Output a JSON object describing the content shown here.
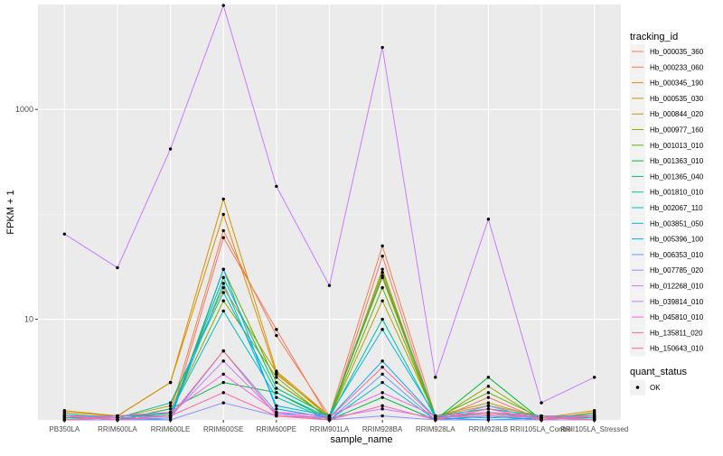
{
  "chart_data": {
    "type": "line",
    "title": "",
    "xlabel": "sample_name",
    "ylabel": "FPKM + 1",
    "y_scale": "log10",
    "ylim": [
      1.1,
      10000
    ],
    "y_ticks": [
      10,
      1000
    ],
    "y_tick_labels": [
      "10",
      "1000"
    ],
    "grid": true,
    "legend_position": "right",
    "categories": [
      "PB350LA",
      "RRIM600LA",
      "RRIM600LE",
      "RRIM600SE",
      "RRIM600PE",
      "RRIM901LA",
      "RRIM928BA",
      "RRIM928LA",
      "RRIM928LB",
      "RRII105LA_Control",
      "RRII105LA_Stressed"
    ],
    "legend_title": "tracking_id",
    "shape_legend_title": "quant_status",
    "shape_legend_entries": [
      "OK"
    ],
    "series": [
      {
        "name": "Hb_000035_360",
        "color": "#F8766D",
        "values": [
          1.1,
          1.1,
          1.15,
          60,
          8,
          1.1,
          40,
          1.1,
          1.8,
          1.1,
          1.1
        ]
      },
      {
        "name": "Hb_000233_060",
        "color": "#F0814A",
        "values": [
          1.2,
          1.2,
          1.3,
          70,
          7,
          1.2,
          50,
          1.2,
          1.5,
          1.2,
          1.2
        ]
      },
      {
        "name": "Hb_000345_190",
        "color": "#E38900",
        "values": [
          1.3,
          1.2,
          2.5,
          100,
          3,
          1.2,
          25,
          1.1,
          1.2,
          1.1,
          1.3
        ]
      },
      {
        "name": "Hb_000535_030",
        "color": "#D39200",
        "values": [
          1.35,
          1.2,
          2.5,
          140,
          3.2,
          1.2,
          28,
          1.15,
          1.25,
          1.15,
          1.35
        ]
      },
      {
        "name": "Hb_000844_020",
        "color": "#B79F00",
        "values": [
          1.2,
          1.15,
          1.5,
          20,
          3.1,
          1.15,
          15,
          1.2,
          1.6,
          1.15,
          1.2
        ]
      },
      {
        "name": "Hb_000977_160",
        "color": "#93AA00",
        "values": [
          1.1,
          1.1,
          1.3,
          15,
          2.8,
          1.1,
          30,
          1.1,
          2.3,
          1.1,
          1.1
        ]
      },
      {
        "name": "Hb_001013_010",
        "color": "#5EB300",
        "values": [
          1.15,
          1.15,
          1.2,
          30,
          2.5,
          1.15,
          20,
          1.15,
          2.0,
          1.15,
          1.15
        ]
      },
      {
        "name": "Hb_001363_010",
        "color": "#00BA38",
        "values": [
          1.2,
          1.1,
          1.4,
          2.5,
          2,
          1.1,
          1.8,
          1.1,
          2.8,
          1.1,
          1.2
        ]
      },
      {
        "name": "Hb_001365_040",
        "color": "#00BF74",
        "values": [
          1.1,
          1.2,
          1.25,
          25,
          2.2,
          1.2,
          26,
          1.2,
          1.4,
          1.2,
          1.1
        ]
      },
      {
        "name": "Hb_001810_010",
        "color": "#00C19F",
        "values": [
          1.25,
          1.15,
          1.6,
          18,
          2,
          1.15,
          10,
          1.15,
          1.3,
          1.15,
          1.25
        ]
      },
      {
        "name": "Hb_002067_110",
        "color": "#00BFC4",
        "values": [
          1.1,
          1.1,
          1.3,
          12,
          1.8,
          1.1,
          2.5,
          1.1,
          1.2,
          1.1,
          1.1
        ]
      },
      {
        "name": "Hb_003851_050",
        "color": "#00B8E7",
        "values": [
          1.15,
          1.2,
          1.2,
          22,
          1.5,
          1.2,
          8,
          1.2,
          1.15,
          1.2,
          1.15
        ]
      },
      {
        "name": "Hb_005396_100",
        "color": "#00A9FF",
        "values": [
          1.2,
          1.15,
          1.1,
          30,
          1.4,
          1.15,
          4,
          1.15,
          1.1,
          1.15,
          1.2
        ]
      },
      {
        "name": "Hb_006353_010",
        "color": "#619CFF",
        "values": [
          1.1,
          1.1,
          1.15,
          5,
          1.3,
          1.1,
          3,
          1.1,
          1.5,
          1.1,
          1.1
        ]
      },
      {
        "name": "Hb_007785_020",
        "color": "#8F91FF",
        "values": [
          1.1,
          1.1,
          1.1,
          1.6,
          1.2,
          1.1,
          1.2,
          1.1,
          1.1,
          1.1,
          1.1
        ]
      },
      {
        "name": "Hb_012268_010",
        "color": "#C77CFF",
        "values": [
          1.2,
          1.15,
          1.2,
          4,
          1.25,
          1.15,
          1.4,
          1.15,
          1.2,
          1.15,
          1.2
        ]
      },
      {
        "name": "Hb_039814_010",
        "color": "#C77CFF",
        "values": [
          65,
          31,
          420,
          9800,
          185,
          21,
          3900,
          2.8,
          90,
          1.6,
          2.8
        ]
      },
      {
        "name": "Hb_045810_010",
        "color": "#F564E3",
        "values": [
          1.1,
          1.2,
          1.3,
          3,
          1.3,
          1.2,
          2,
          1.2,
          1.3,
          1.2,
          1.1
        ]
      },
      {
        "name": "Hb_135811_020",
        "color": "#FF64B0",
        "values": [
          1.2,
          1.1,
          1.2,
          2,
          1.2,
          1.1,
          1.5,
          1.1,
          1.4,
          1.1,
          1.2
        ]
      },
      {
        "name": "Hb_150643_010",
        "color": "#FF6C91",
        "values": [
          1.1,
          1.15,
          1.2,
          5,
          1.2,
          1.15,
          3.5,
          1.15,
          1.25,
          1.15,
          1.1
        ]
      }
    ]
  }
}
